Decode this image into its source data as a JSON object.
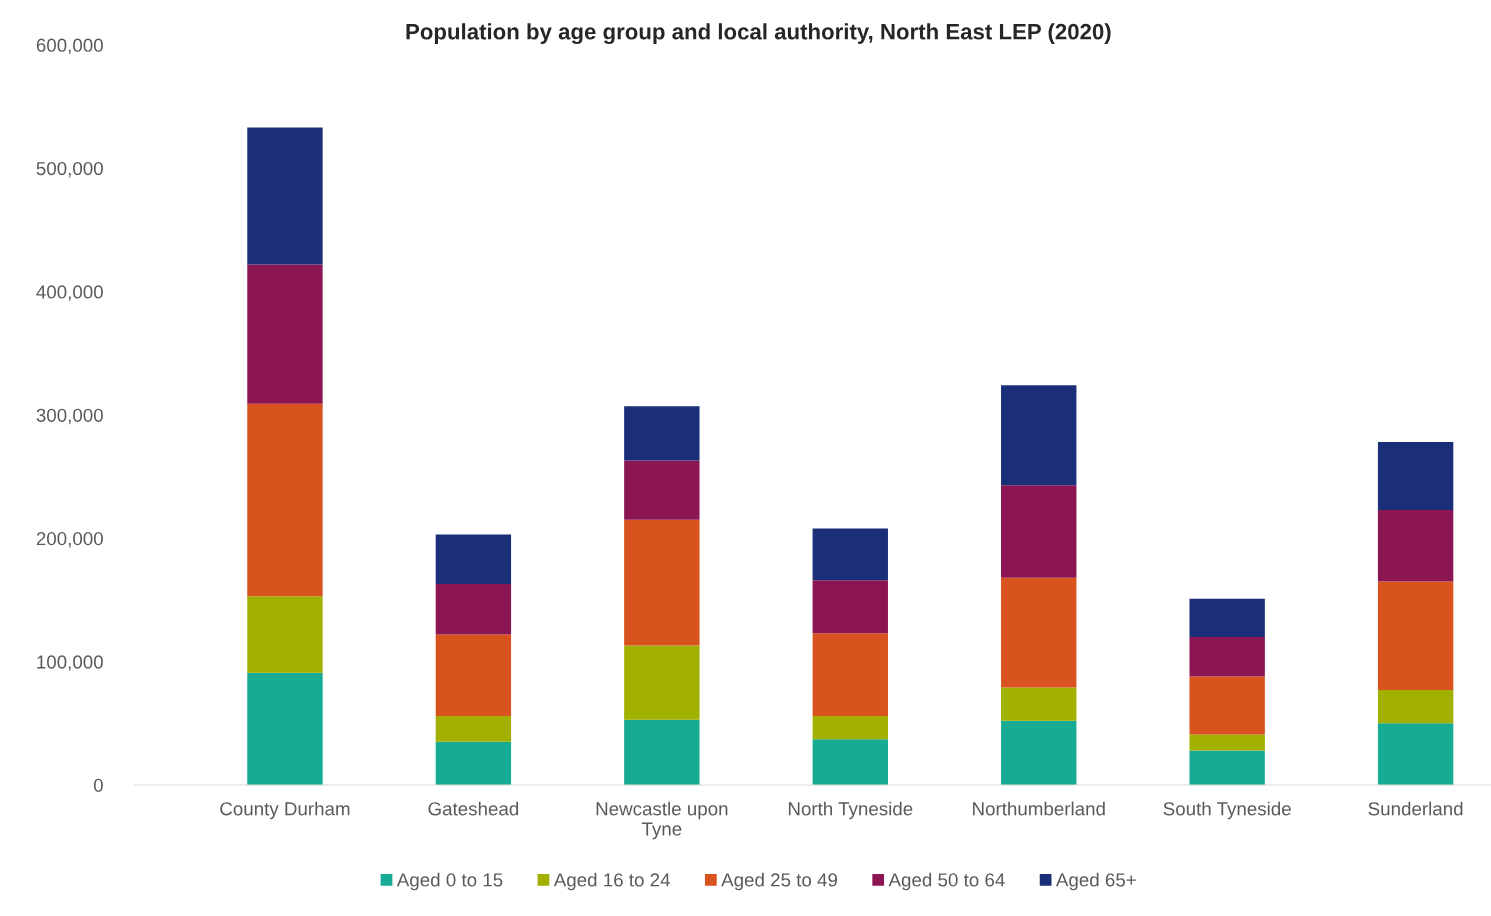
{
  "chart_data": {
    "type": "bar",
    "title": "Population by age group and local authority, North East LEP (2020)",
    "categories": [
      "County Durham",
      "Gateshead",
      "Newcastle upon Tyne",
      "North Tyneside",
      "Northumberland",
      "South Tyneside",
      "Sunderland"
    ],
    "stacked": true,
    "series": [
      {
        "name": "Aged 0 to 15",
        "color": "#17ab93",
        "values": [
          91000,
          35000,
          53000,
          37000,
          52000,
          28000,
          50000
        ]
      },
      {
        "name": "Aged 16 to 24",
        "color": "#a2b000",
        "values": [
          62000,
          21000,
          60000,
          19000,
          27000,
          13000,
          27000
        ]
      },
      {
        "name": "Aged 25 to 49",
        "color": "#d9531e",
        "values": [
          156000,
          66000,
          102000,
          67000,
          89000,
          47000,
          88000
        ]
      },
      {
        "name": "Aged 50 to 64",
        "color": "#8c1654",
        "values": [
          113000,
          41000,
          48000,
          43000,
          75000,
          32000,
          58000
        ]
      },
      {
        "name": "Aged 65+",
        "color": "#1b2f78",
        "values": [
          111000,
          40000,
          44000,
          42000,
          81000,
          31000,
          55000
        ]
      }
    ],
    "ylim": [
      0,
      600000
    ],
    "yticks": [
      {
        "value": 0,
        "label": "0"
      },
      {
        "value": 100000,
        "label": "100,000"
      },
      {
        "value": 200000,
        "label": "200,000"
      },
      {
        "value": 300000,
        "label": "300,000"
      },
      {
        "value": 400000,
        "label": "400,000"
      },
      {
        "value": 500000,
        "label": "500,000"
      },
      {
        "value": 600000,
        "label": "600,000"
      }
    ],
    "grid": false,
    "legend": "bottom"
  }
}
